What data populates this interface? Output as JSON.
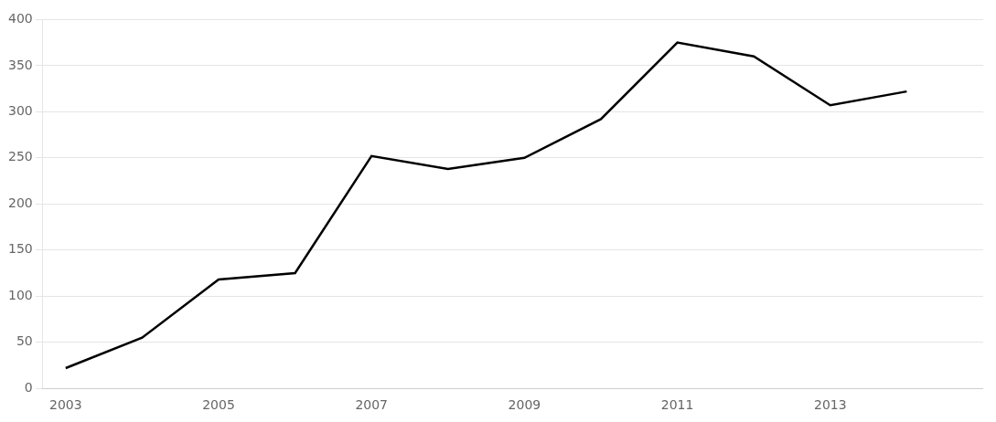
{
  "chart_data": {
    "type": "line",
    "x": [
      2003,
      2004,
      2005,
      2006,
      2007,
      2008,
      2009,
      2010,
      2011,
      2012,
      2013,
      2014
    ],
    "values": [
      22,
      55,
      118,
      125,
      252,
      238,
      250,
      292,
      375,
      360,
      307,
      322
    ],
    "color": "#000000",
    "xlim": [
      2002.7,
      2015.0
    ],
    "xticks": [
      2003,
      2005,
      2007,
      2009,
      2011,
      2013
    ],
    "ylim": [
      0,
      400
    ],
    "yticks": [
      0,
      50,
      100,
      150,
      200,
      250,
      300,
      350,
      400
    ],
    "grid": "y"
  }
}
